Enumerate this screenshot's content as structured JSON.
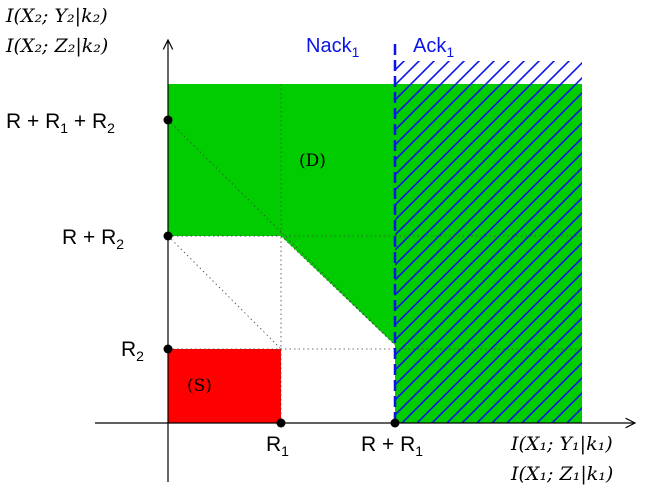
{
  "axes": {
    "y_label_line1": "I(X₂; Y₂|k₂)",
    "y_label_line2": "I(X₂; Z₂|k₂)",
    "x_label_line1": "I(X₁; Y₁|k₁)",
    "x_label_line2": "I(X₁; Z₁|k₁)"
  },
  "y_ticks": {
    "top": {
      "main": "R + R",
      "s1": "1",
      "mid": " + R",
      "s2": "2"
    },
    "middle": {
      "main": "R + R",
      "s1": "2"
    },
    "low": {
      "main": "R",
      "s1": "2"
    }
  },
  "x_ticks": {
    "first": {
      "main": "R",
      "s1": "1"
    },
    "second": {
      "main": "R + R",
      "s1": "1"
    }
  },
  "regions": {
    "success": "(S)",
    "decode": "(D)"
  },
  "zones": {
    "nack": {
      "main": "Nack",
      "s1": "1"
    },
    "ack": {
      "main": "Ack",
      "s1": "1"
    }
  },
  "colors": {
    "green": "#00cc00",
    "red": "#ff0000",
    "blue": "#0a14e6"
  }
}
